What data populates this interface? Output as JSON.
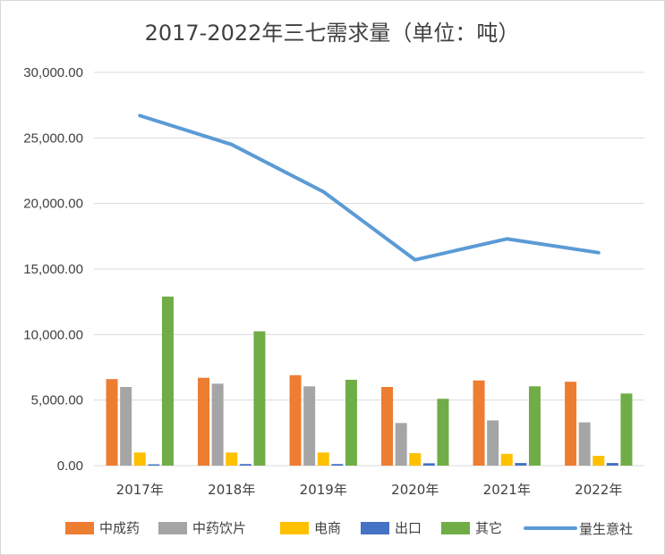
{
  "chart_data": {
    "type": "bar",
    "title": "2017-2022年三七需求量（单位：吨）",
    "categories": [
      "2017年",
      "2018年",
      "2019年",
      "2020年",
      "2021年",
      "2022年"
    ],
    "ylim": [
      0,
      30000
    ],
    "yticks": [
      "0.00",
      "5,000.00",
      "10,000.00",
      "15,000.00",
      "20,000.00",
      "25,000.00",
      "30,000.00"
    ],
    "ytick_values": [
      0,
      5000,
      10000,
      15000,
      20000,
      25000,
      30000
    ],
    "grid": true,
    "legend_position": "bottom",
    "series": [
      {
        "name": "中成药",
        "type": "bar",
        "color": "#ED7D31",
        "values": [
          6600,
          6700,
          6900,
          6000,
          6500,
          6400
        ]
      },
      {
        "name": "中药饮片",
        "type": "bar",
        "color": "#A5A5A5",
        "values": [
          6000,
          6250,
          6050,
          3250,
          3450,
          3300
        ]
      },
      {
        "name": "电商",
        "type": "bar",
        "color": "#FFC000",
        "values": [
          1000,
          1000,
          1000,
          950,
          900,
          750
        ]
      },
      {
        "name": "出口",
        "type": "bar",
        "color": "#4472C4",
        "values": [
          100,
          120,
          120,
          180,
          200,
          200
        ]
      },
      {
        "name": "其它",
        "type": "bar",
        "color": "#70AD47",
        "values": [
          12900,
          10250,
          6550,
          5100,
          6050,
          5500
        ]
      },
      {
        "name": "",
        "type": "line",
        "color": "#5B9BD5",
        "values": [
          26700,
          24500,
          20900,
          15700,
          17300,
          16250
        ]
      }
    ]
  },
  "watermark": {
    "text": "量生意社"
  }
}
